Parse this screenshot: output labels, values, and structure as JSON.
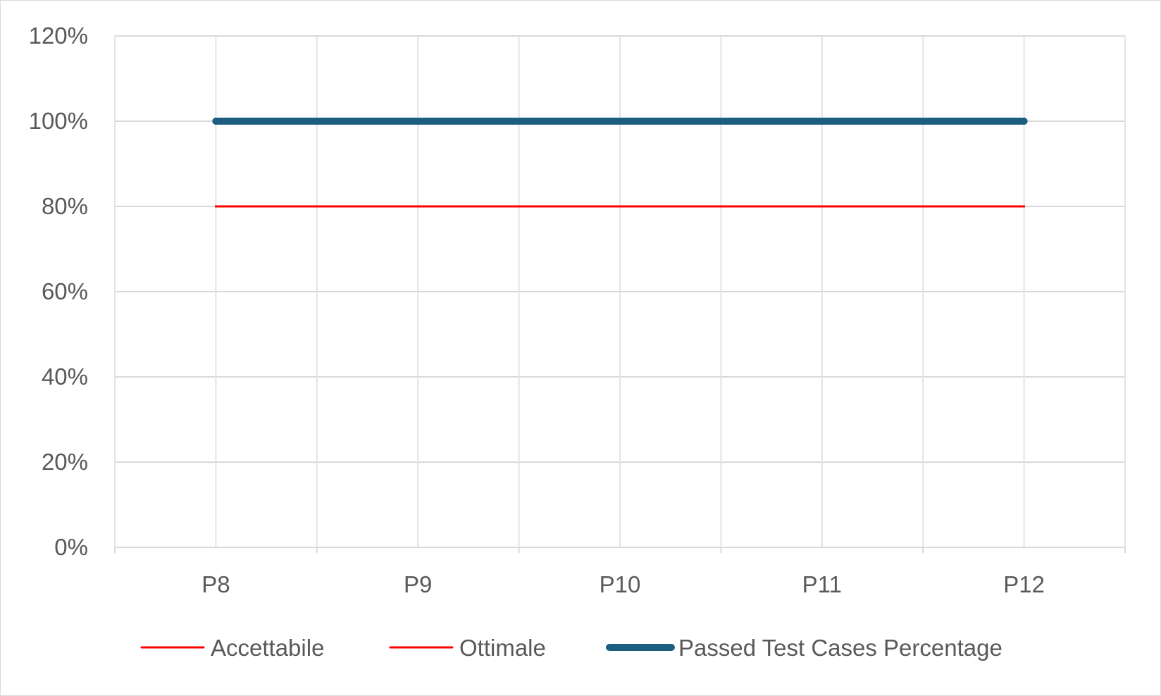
{
  "chart_data": {
    "type": "line",
    "categories": [
      "P8",
      "P9",
      "P10",
      "P11",
      "P12"
    ],
    "y_ticks": [
      "0%",
      "20%",
      "40%",
      "60%",
      "80%",
      "100%",
      "120%"
    ],
    "ylim": [
      0,
      120
    ],
    "grid": true,
    "legend_position": "bottom",
    "series": [
      {
        "name": "Accettabile",
        "values": [
          80,
          80,
          80,
          80,
          80
        ],
        "color": "#ff0000"
      },
      {
        "name": "Ottimale",
        "values": [
          80,
          80,
          80,
          80,
          80
        ],
        "color": "#ff0000"
      },
      {
        "name": "Passed Test Cases Percentage",
        "values": [
          100,
          100,
          100,
          100,
          100
        ],
        "color": "#1b5e80"
      }
    ]
  }
}
